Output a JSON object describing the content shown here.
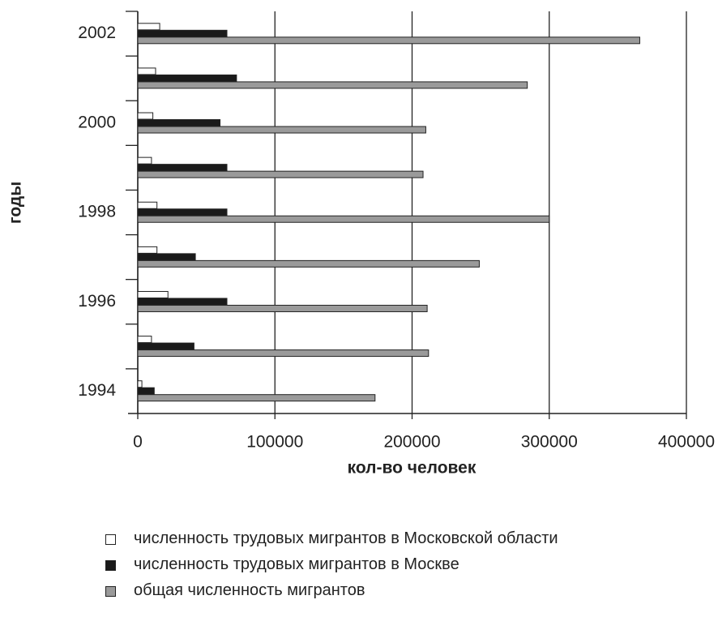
{
  "chart_data": {
    "type": "bar",
    "orientation": "horizontal",
    "categories": [
      "1994",
      null,
      "1996",
      null,
      "1998",
      null,
      "2000",
      null,
      "2002"
    ],
    "series": [
      {
        "name": "численность трудовых мигрантов в Московской области",
        "color": "#ffffff",
        "values": [
          3000,
          10000,
          22000,
          14000,
          14000,
          10000,
          11000,
          13000,
          16000
        ]
      },
      {
        "name": "численность трудовых мигрантов в Москве",
        "color": "#1a1a1a",
        "values": [
          12000,
          41000,
          65000,
          42000,
          65000,
          65000,
          60000,
          72000,
          65000
        ]
      },
      {
        "name": "общая численность мигрантов",
        "color": "#9a9a9a",
        "values": [
          173000,
          212000,
          211000,
          249000,
          300000,
          208000,
          210000,
          284000,
          366000
        ]
      }
    ],
    "xlabel": "кол-во человек",
    "ylabel": "годы",
    "xlim": [
      0,
      400000
    ],
    "xticks": [
      0,
      100000,
      200000,
      300000,
      400000
    ],
    "grid": true
  }
}
